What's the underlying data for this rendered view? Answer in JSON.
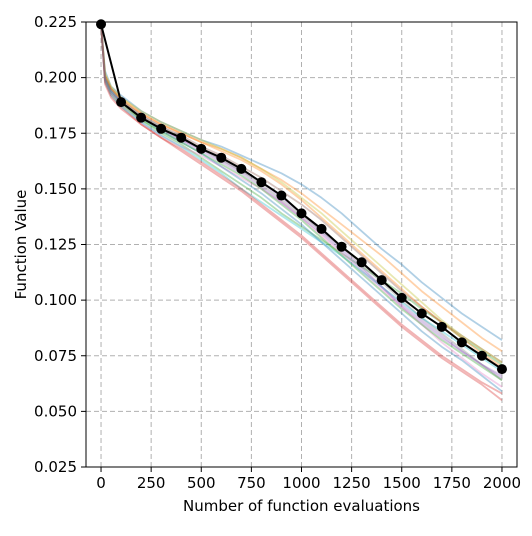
{
  "chart_data": {
    "type": "line",
    "title": "",
    "xlabel": "Number of function evaluations",
    "ylabel": "Function Value",
    "xlim": [
      -75,
      2075
    ],
    "ylim": [
      0.025,
      0.225
    ],
    "xticks": [
      0,
      250,
      500,
      750,
      1000,
      1250,
      1500,
      1750,
      2000
    ],
    "yticks": [
      0.025,
      0.05,
      0.075,
      0.1,
      0.125,
      0.15,
      0.175,
      0.2,
      0.225
    ],
    "xtick_labels": [
      "0",
      "250",
      "500",
      "750",
      "1000",
      "1250",
      "1500",
      "1750",
      "2000"
    ],
    "ytick_labels": [
      "0.025",
      "0.050",
      "0.075",
      "0.100",
      "0.125",
      "0.150",
      "0.175",
      "0.200",
      "0.225"
    ],
    "grid": true,
    "legend": "none",
    "mean_series": {
      "color": "#000000",
      "marker": "circle",
      "x": [
        0,
        100,
        200,
        300,
        400,
        500,
        600,
        700,
        800,
        900,
        1000,
        1100,
        1200,
        1300,
        1400,
        1500,
        1600,
        1700,
        1800,
        1900,
        2000
      ],
      "y": [
        0.224,
        0.189,
        0.182,
        0.177,
        0.173,
        0.168,
        0.164,
        0.159,
        0.153,
        0.147,
        0.139,
        0.132,
        0.124,
        0.117,
        0.109,
        0.101,
        0.094,
        0.088,
        0.081,
        0.075,
        0.069
      ]
    },
    "run_series": {
      "x": [
        0,
        20,
        50,
        100,
        200,
        300,
        400,
        500,
        600,
        700,
        800,
        900,
        1000,
        1100,
        1200,
        1300,
        1400,
        1500,
        1600,
        1700,
        1800,
        1900,
        2000
      ],
      "runs": [
        {
          "color": "#1f77b4",
          "y": [
            0.224,
            0.203,
            0.196,
            0.192,
            0.185,
            0.18,
            0.176,
            0.172,
            0.169,
            0.165,
            0.161,
            0.157,
            0.152,
            0.146,
            0.139,
            0.131,
            0.123,
            0.116,
            0.108,
            0.101,
            0.094,
            0.088,
            0.082
          ]
        },
        {
          "color": "#ff7f0e",
          "y": [
            0.224,
            0.201,
            0.195,
            0.191,
            0.184,
            0.179,
            0.175,
            0.171,
            0.168,
            0.164,
            0.159,
            0.154,
            0.148,
            0.141,
            0.134,
            0.127,
            0.12,
            0.112,
            0.104,
            0.097,
            0.09,
            0.083,
            0.077
          ]
        },
        {
          "color": "#2ca02c",
          "y": [
            0.224,
            0.199,
            0.194,
            0.189,
            0.181,
            0.175,
            0.17,
            0.164,
            0.158,
            0.152,
            0.146,
            0.139,
            0.133,
            0.127,
            0.121,
            0.115,
            0.109,
            0.103,
            0.096,
            0.09,
            0.083,
            0.077,
            0.071
          ]
        },
        {
          "color": "#d62728",
          "y": [
            0.224,
            0.198,
            0.192,
            0.187,
            0.179,
            0.173,
            0.167,
            0.161,
            0.155,
            0.149,
            0.142,
            0.135,
            0.128,
            0.12,
            0.112,
            0.104,
            0.096,
            0.088,
            0.081,
            0.074,
            0.068,
            0.062,
            0.055
          ]
        },
        {
          "color": "#9467bd",
          "y": [
            0.224,
            0.2,
            0.194,
            0.189,
            0.182,
            0.177,
            0.172,
            0.168,
            0.163,
            0.158,
            0.153,
            0.146,
            0.139,
            0.131,
            0.123,
            0.115,
            0.106,
            0.097,
            0.09,
            0.083,
            0.077,
            0.071,
            0.066
          ]
        },
        {
          "color": "#8c564b",
          "y": [
            0.224,
            0.2,
            0.195,
            0.19,
            0.183,
            0.178,
            0.174,
            0.169,
            0.165,
            0.16,
            0.155,
            0.149,
            0.143,
            0.136,
            0.128,
            0.12,
            0.112,
            0.104,
            0.097,
            0.09,
            0.084,
            0.078,
            0.072
          ]
        },
        {
          "color": "#e377c2",
          "y": [
            0.224,
            0.199,
            0.193,
            0.188,
            0.18,
            0.174,
            0.169,
            0.165,
            0.16,
            0.155,
            0.15,
            0.144,
            0.137,
            0.129,
            0.121,
            0.113,
            0.105,
            0.097,
            0.089,
            0.081,
            0.074,
            0.067,
            0.061
          ]
        },
        {
          "color": "#7f7f7f",
          "y": [
            0.224,
            0.201,
            0.195,
            0.19,
            0.183,
            0.178,
            0.173,
            0.168,
            0.163,
            0.158,
            0.152,
            0.145,
            0.138,
            0.131,
            0.124,
            0.116,
            0.108,
            0.1,
            0.092,
            0.085,
            0.078,
            0.071,
            0.064
          ]
        },
        {
          "color": "#bcbd22",
          "y": [
            0.224,
            0.202,
            0.196,
            0.191,
            0.185,
            0.18,
            0.176,
            0.172,
            0.168,
            0.164,
            0.159,
            0.153,
            0.146,
            0.139,
            0.131,
            0.123,
            0.115,
            0.107,
            0.099,
            0.091,
            0.084,
            0.078,
            0.072
          ]
        },
        {
          "color": "#17becf",
          "y": [
            0.224,
            0.198,
            0.192,
            0.187,
            0.18,
            0.174,
            0.169,
            0.163,
            0.157,
            0.15,
            0.144,
            0.138,
            0.132,
            0.126,
            0.12,
            0.113,
            0.106,
            0.099,
            0.092,
            0.086,
            0.08,
            0.074,
            0.068
          ]
        },
        {
          "color": "#1f77b4",
          "y": [
            0.224,
            0.2,
            0.194,
            0.189,
            0.182,
            0.176,
            0.171,
            0.166,
            0.16,
            0.154,
            0.148,
            0.141,
            0.134,
            0.126,
            0.118,
            0.11,
            0.102,
            0.094,
            0.086,
            0.079,
            0.073,
            0.066,
            0.059
          ]
        },
        {
          "color": "#ff7f0e",
          "y": [
            0.224,
            0.201,
            0.195,
            0.19,
            0.184,
            0.179,
            0.175,
            0.171,
            0.167,
            0.163,
            0.158,
            0.152,
            0.145,
            0.137,
            0.129,
            0.121,
            0.113,
            0.105,
            0.097,
            0.09,
            0.083,
            0.076,
            0.07
          ]
        },
        {
          "color": "#2ca02c",
          "y": [
            0.224,
            0.199,
            0.193,
            0.188,
            0.181,
            0.176,
            0.171,
            0.166,
            0.161,
            0.156,
            0.15,
            0.143,
            0.136,
            0.128,
            0.12,
            0.112,
            0.104,
            0.096,
            0.089,
            0.082,
            0.076,
            0.07,
            0.064
          ]
        },
        {
          "color": "#d62728",
          "y": [
            0.224,
            0.197,
            0.191,
            0.186,
            0.179,
            0.173,
            0.168,
            0.162,
            0.156,
            0.15,
            0.143,
            0.136,
            0.129,
            0.121,
            0.113,
            0.105,
            0.097,
            0.089,
            0.082,
            0.075,
            0.069,
            0.063,
            0.058
          ]
        },
        {
          "color": "#9467bd",
          "y": [
            0.224,
            0.199,
            0.193,
            0.189,
            0.182,
            0.177,
            0.172,
            0.167,
            0.162,
            0.157,
            0.151,
            0.144,
            0.137,
            0.13,
            0.122,
            0.114,
            0.106,
            0.098,
            0.091,
            0.084,
            0.077,
            0.071,
            0.065
          ]
        }
      ]
    }
  }
}
